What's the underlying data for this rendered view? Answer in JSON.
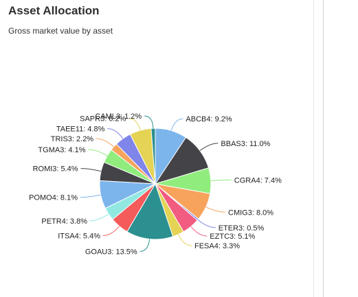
{
  "header": {
    "title": "Asset Allocation",
    "subtitle": "Gross market value by asset"
  },
  "chart_data": {
    "type": "pie",
    "title": "Asset Allocation",
    "subtitle": "Gross market value by asset",
    "legend": "none",
    "slices": [
      {
        "label": "ABCB4",
        "value": 9.2,
        "display": "ABCB4: 9.2%",
        "color": "#7cb5ec"
      },
      {
        "label": "BBAS3",
        "value": 11.0,
        "display": "BBAS3: 11.0%",
        "color": "#434348"
      },
      {
        "label": "CGRA4",
        "value": 7.4,
        "display": "CGRA4: 7.4%",
        "color": "#90ed7d"
      },
      {
        "label": "CMIG3",
        "value": 8.0,
        "display": "CMIG3: 8.0%",
        "color": "#f7a35c"
      },
      {
        "label": "ETER3",
        "value": 0.5,
        "display": "ETER3: 0.5%",
        "color": "#8085e9"
      },
      {
        "label": "EZTC3",
        "value": 5.1,
        "display": "EZTC3: 5.1%",
        "color": "#f15c80"
      },
      {
        "label": "FESA4",
        "value": 3.3,
        "display": "FESA4: 3.3%",
        "color": "#e4d354"
      },
      {
        "label": "GOAU3",
        "value": 13.5,
        "display": "GOAU3: 13.5%",
        "color": "#2b908f"
      },
      {
        "label": "ITSA4",
        "value": 5.4,
        "display": "ITSA4: 5.4%",
        "color": "#f45b5b"
      },
      {
        "label": "PETR4",
        "value": 3.8,
        "display": "PETR4: 3.8%",
        "color": "#91e8e1"
      },
      {
        "label": "POMO4",
        "value": 8.1,
        "display": "POMO4: 8.1%",
        "color": "#7cb5ec"
      },
      {
        "label": "ROMI3",
        "value": 5.4,
        "display": "ROMI3: 5.4%",
        "color": "#434348"
      },
      {
        "label": "TGMA3",
        "value": 4.1,
        "display": "TGMA3: 4.1%",
        "color": "#90ed7d"
      },
      {
        "label": "TRIS3",
        "value": 2.2,
        "display": "TRIS3: 2.2%",
        "color": "#f7a35c"
      },
      {
        "label": "TAEE11",
        "value": 4.8,
        "display": "TAEE11: 4.8%",
        "color": "#8085e9"
      },
      {
        "label": "SAPR3",
        "value": 6.2,
        "display": "SAPR3: 6.2%",
        "color": "#e4d354"
      },
      {
        "label": "CAML3",
        "value": 1.2,
        "display": "CAML3: 1.2%",
        "color": "#2b908f"
      }
    ]
  }
}
